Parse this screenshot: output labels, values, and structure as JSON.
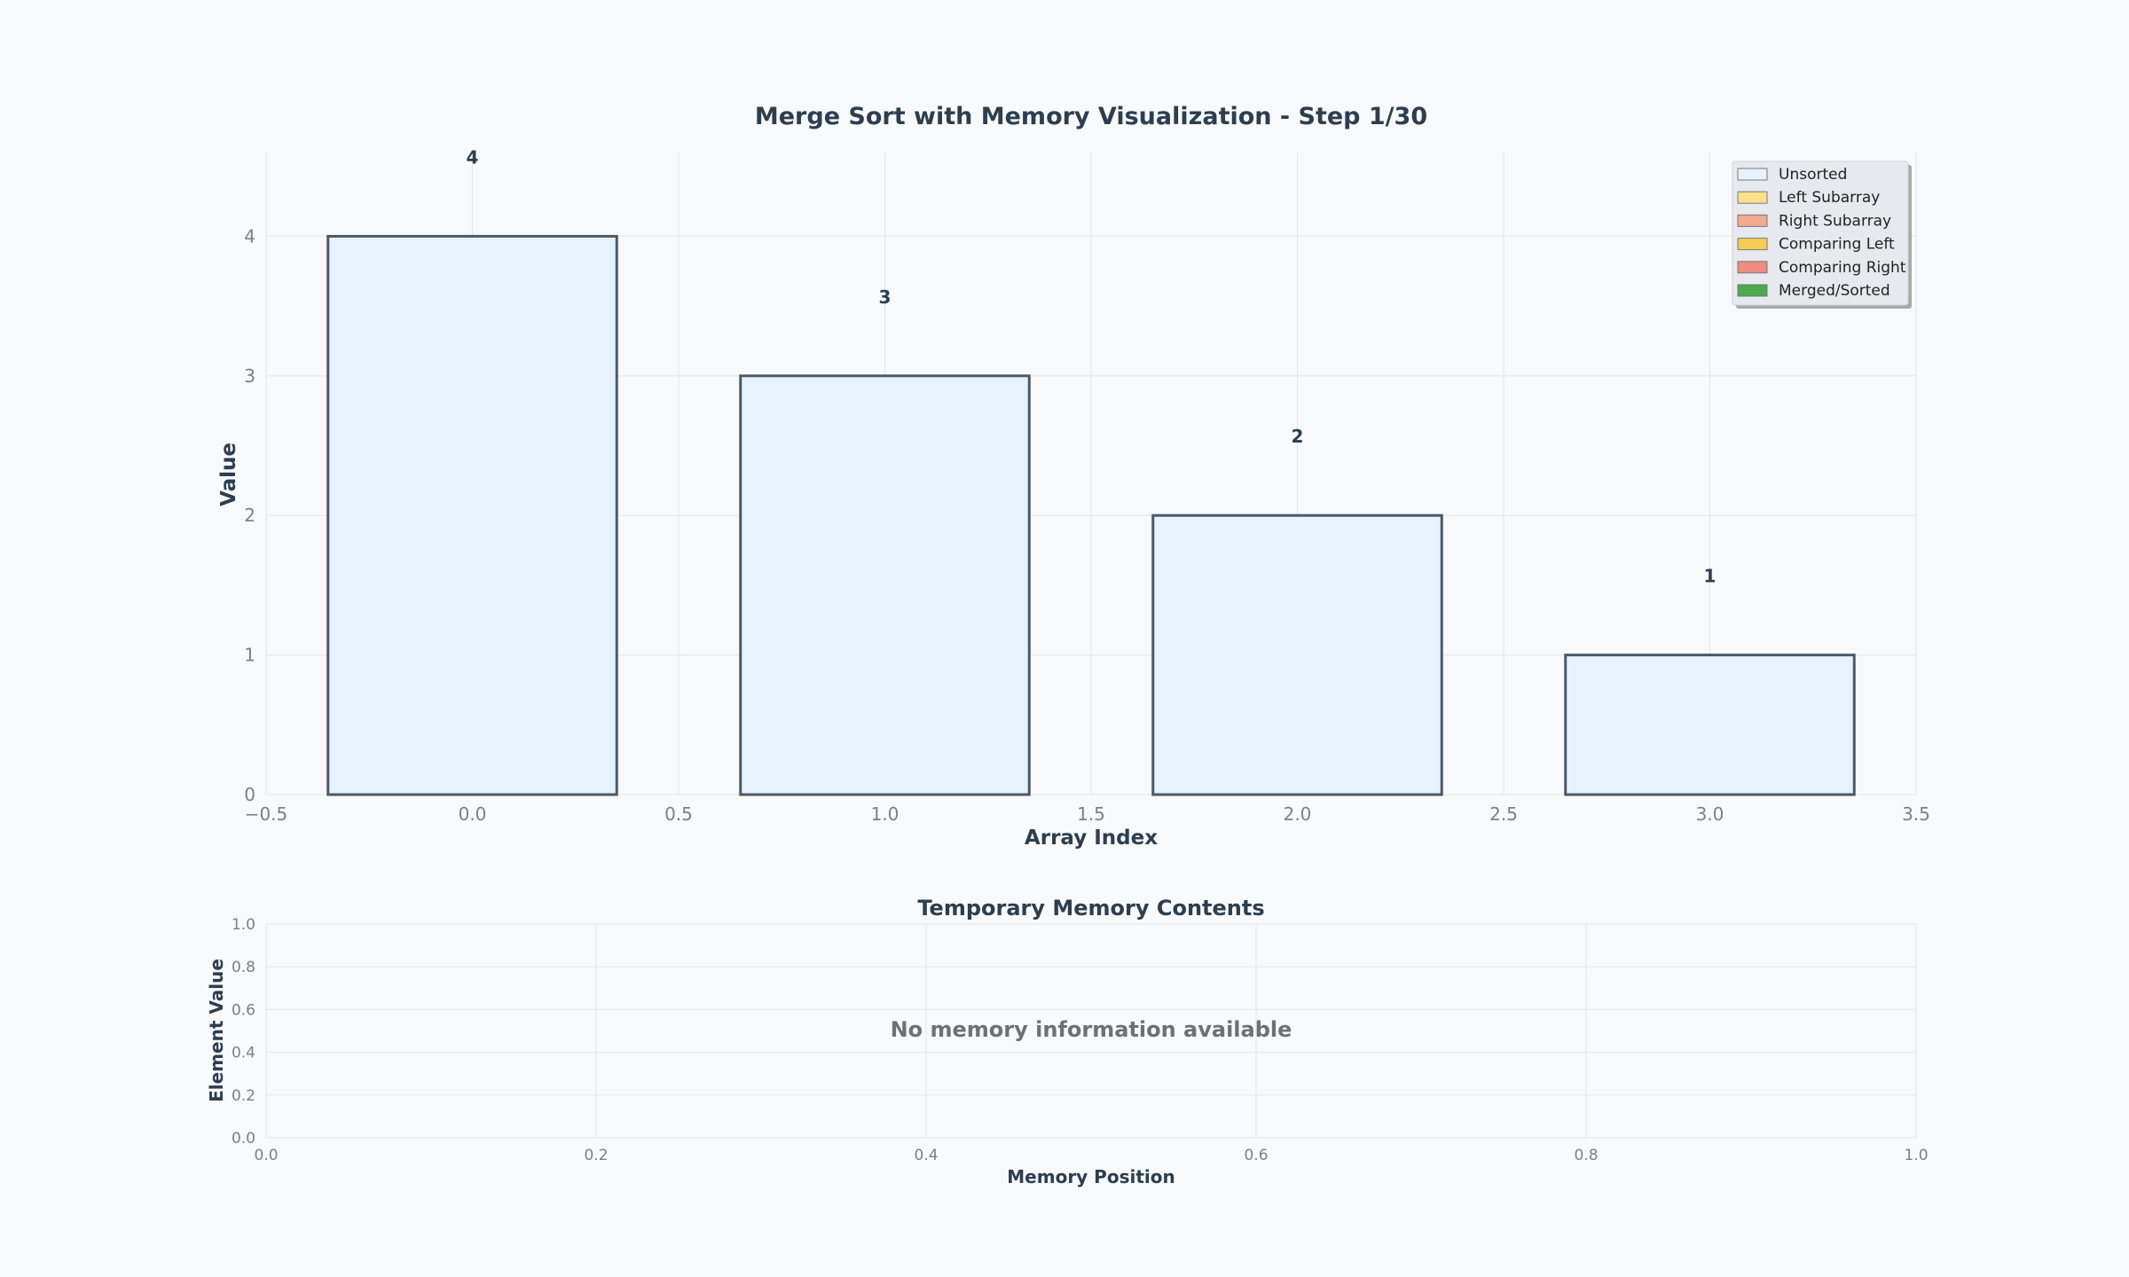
{
  "chart_data": [
    {
      "type": "bar",
      "title": "Merge Sort with Memory Visualization - Step 1/30",
      "xlabel": "Array Index",
      "ylabel": "Value",
      "x": [
        0,
        1,
        2,
        3
      ],
      "values": [
        4,
        3,
        2,
        1
      ],
      "value_labels": [
        "4",
        "3",
        "2",
        "1"
      ],
      "bar_color": "#e6f3fc",
      "bar_edge_color": "#4a5a68",
      "xlim": [
        -0.5,
        3.5
      ],
      "ylim": [
        0,
        4.6
      ],
      "xticks": [
        -0.5,
        0.0,
        0.5,
        1.0,
        1.5,
        2.0,
        2.5,
        3.0,
        3.5
      ],
      "xtick_labels": [
        "−0.5",
        "0.0",
        "0.5",
        "1.0",
        "1.5",
        "2.0",
        "2.5",
        "3.0",
        "3.5"
      ],
      "yticks": [
        0,
        1,
        2,
        3,
        4
      ],
      "ytick_labels": [
        "0",
        "1",
        "2",
        "3",
        "4"
      ],
      "grid": true,
      "legend_position": "top-right",
      "legend": [
        {
          "label": "Unsorted",
          "color": "#e6f3fc"
        },
        {
          "label": "Left Subarray",
          "color": "#ffe08a"
        },
        {
          "label": "Right Subarray",
          "color": "#f5a98e"
        },
        {
          "label": "Comparing Left",
          "color": "#f6cc55"
        },
        {
          "label": "Comparing Right",
          "color": "#f08b80"
        },
        {
          "label": "Merged/Sorted",
          "color": "#4caa4c"
        }
      ]
    },
    {
      "type": "bar",
      "title": "Temporary Memory Contents",
      "xlabel": "Memory Position",
      "ylabel": "Element Value",
      "x": [],
      "values": [],
      "xlim": [
        0,
        1
      ],
      "ylim": [
        0,
        1
      ],
      "xticks": [
        0.0,
        0.2,
        0.4,
        0.6,
        0.8,
        1.0
      ],
      "xtick_labels": [
        "0.0",
        "0.2",
        "0.4",
        "0.6",
        "0.8",
        "1.0"
      ],
      "yticks": [
        0.0,
        0.2,
        0.4,
        0.6,
        0.8,
        1.0
      ],
      "ytick_labels": [
        "0.0",
        "0.2",
        "0.4",
        "0.6",
        "0.8",
        "1.0"
      ],
      "grid": true,
      "annotation": "No memory information available"
    }
  ]
}
